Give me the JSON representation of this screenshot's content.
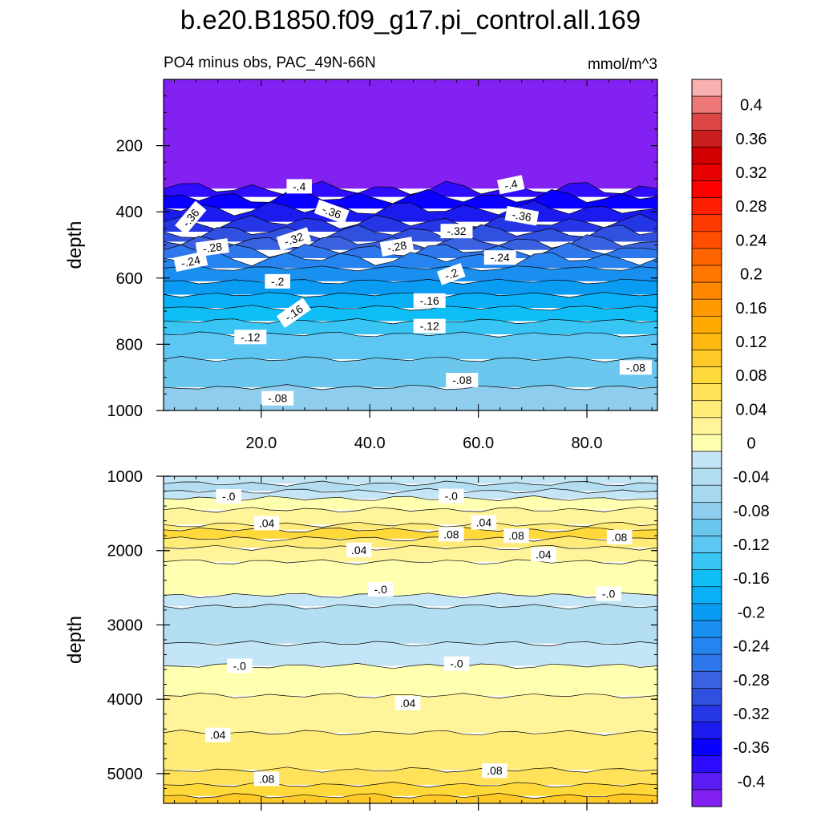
{
  "chart_data": {
    "type": "heatmap",
    "title": "b.e20.B1850.f09_g17.pi_control.all.169",
    "subtitle_left": "PO4 minus obs, PAC_49N-66N",
    "subtitle_right": "mmol/m^3",
    "xlim": [
      2,
      93
    ],
    "x_ticks": [
      20.0,
      40.0,
      60.0,
      80.0
    ],
    "x_tick_labels": [
      "20.0",
      "40.0",
      "60.0",
      "80.0"
    ],
    "colorbar": {
      "levels": [
        -0.42,
        -0.4,
        -0.38,
        -0.36,
        -0.34,
        -0.32,
        -0.3,
        -0.28,
        -0.26,
        -0.24,
        -0.22,
        -0.2,
        -0.18,
        -0.16,
        -0.14,
        -0.12,
        -0.1,
        -0.08,
        -0.06,
        -0.04,
        -0.02,
        0,
        0.02,
        0.04,
        0.06,
        0.08,
        0.1,
        0.12,
        0.14,
        0.16,
        0.18,
        0.2,
        0.22,
        0.24,
        0.26,
        0.28,
        0.3,
        0.32,
        0.34,
        0.36,
        0.38,
        0.4,
        0.42
      ],
      "colors": [
        "#8221F1",
        "#5A1CF2",
        "#2E0CFF",
        "#0A00FF",
        "#1B1BF0",
        "#2436E6",
        "#3050E0",
        "#3A62E0",
        "#2F77EC",
        "#2584F0",
        "#198FF0",
        "#0A9CF2",
        "#09B0F5",
        "#10BEF7",
        "#38C5F4",
        "#5DC6F2",
        "#6CC7EE",
        "#8ECDED",
        "#A6D8F0",
        "#B3DEF2",
        "#C4E5F5",
        "#FFFFB0",
        "#FFF49A",
        "#FFEB78",
        "#FFE25A",
        "#FFD83A",
        "#FFCA28",
        "#FFB80F",
        "#FFAA00",
        "#FF9900",
        "#FF8800",
        "#FF7700",
        "#FF6400",
        "#FF4E00",
        "#FF3A00",
        "#FF1E00",
        "#FF0000",
        "#E80000",
        "#D20000",
        "#C81E1E",
        "#DC4646",
        "#EE7878",
        "#F9B0B0"
      ],
      "tick_labels": [
        "-0.4",
        "-0.36",
        "-0.32",
        "-0.28",
        "-0.24",
        "-0.2",
        "-0.16",
        "-0.12",
        "-0.08",
        "-0.04",
        "0",
        "0.04",
        "0.08",
        "0.12",
        "0.16",
        "0.2",
        "0.24",
        "0.28",
        "0.32",
        "0.36",
        "0.4"
      ],
      "tick_values": [
        -0.4,
        -0.36,
        -0.32,
        -0.28,
        -0.24,
        -0.2,
        -0.16,
        -0.12,
        -0.08,
        -0.04,
        0,
        0.04,
        0.08,
        0.12,
        0.16,
        0.2,
        0.24,
        0.28,
        0.32,
        0.36,
        0.4
      ]
    },
    "panels": [
      {
        "name": "upper",
        "ylabel": "depth",
        "ylim": [
          0,
          1000
        ],
        "y_ticks": [
          200,
          400,
          600,
          800,
          1000
        ],
        "y_tick_labels": [
          "200",
          "400",
          "600",
          "800",
          "1000"
        ],
        "show_x_labels": true,
        "bands": [
          {
            "y_top": 0,
            "y_bot": 330,
            "value": -0.42
          },
          {
            "y_top": 330,
            "y_bot": 355,
            "value": -0.38
          },
          {
            "y_top": 355,
            "y_bot": 390,
            "value": -0.36
          },
          {
            "y_top": 390,
            "y_bot": 430,
            "value": -0.34
          },
          {
            "y_top": 430,
            "y_bot": 460,
            "value": -0.32
          },
          {
            "y_top": 460,
            "y_bot": 490,
            "value": -0.3
          },
          {
            "y_top": 490,
            "y_bot": 515,
            "value": -0.28
          },
          {
            "y_top": 515,
            "y_bot": 540,
            "value": -0.26
          },
          {
            "y_top": 540,
            "y_bot": 570,
            "value": -0.24
          },
          {
            "y_top": 570,
            "y_bot": 610,
            "value": -0.22
          },
          {
            "y_top": 610,
            "y_bot": 650,
            "value": -0.2
          },
          {
            "y_top": 650,
            "y_bot": 690,
            "value": -0.18
          },
          {
            "y_top": 690,
            "y_bot": 730,
            "value": -0.16
          },
          {
            "y_top": 730,
            "y_bot": 770,
            "value": -0.14
          },
          {
            "y_top": 770,
            "y_bot": 845,
            "value": -0.12
          },
          {
            "y_top": 845,
            "y_bot": 930,
            "value": -0.1
          },
          {
            "y_top": 930,
            "y_bot": 1000,
            "value": -0.08
          }
        ],
        "labels": [
          {
            "text": "-.4",
            "x": 27,
            "y": 323,
            "rot": 0
          },
          {
            "text": "-.4",
            "x": 66,
            "y": 318,
            "rot": -12
          },
          {
            "text": "-.36",
            "x": 7,
            "y": 418,
            "rot": -50
          },
          {
            "text": "-.36",
            "x": 33,
            "y": 400,
            "rot": 20
          },
          {
            "text": "-.36",
            "x": 68,
            "y": 412,
            "rot": 10
          },
          {
            "text": "-.32",
            "x": 26,
            "y": 482,
            "rot": -18
          },
          {
            "text": "-.32",
            "x": 56,
            "y": 458,
            "rot": 0
          },
          {
            "text": "-.28",
            "x": 11,
            "y": 508,
            "rot": -8
          },
          {
            "text": "-.28",
            "x": 45,
            "y": 505,
            "rot": -10
          },
          {
            "text": "-.24",
            "x": 7,
            "y": 550,
            "rot": -12
          },
          {
            "text": "-.24",
            "x": 64,
            "y": 538,
            "rot": 0
          },
          {
            "text": "-.2",
            "x": 23,
            "y": 610,
            "rot": 0
          },
          {
            "text": "-.2",
            "x": 55,
            "y": 588,
            "rot": -20
          },
          {
            "text": "-.16",
            "x": 26,
            "y": 705,
            "rot": -35
          },
          {
            "text": "-.16",
            "x": 51,
            "y": 668,
            "rot": 0
          },
          {
            "text": "-.12",
            "x": 18,
            "y": 778,
            "rot": 0
          },
          {
            "text": "-.12",
            "x": 51,
            "y": 745,
            "rot": 0
          },
          {
            "text": "-.08",
            "x": 57,
            "y": 908,
            "rot": 0
          },
          {
            "text": "-.08",
            "x": 89,
            "y": 870,
            "rot": 0
          },
          {
            "text": "-.08",
            "x": 23,
            "y": 963,
            "rot": 0
          }
        ]
      },
      {
        "name": "lower",
        "ylabel": "depth",
        "ylim": [
          1000,
          5400
        ],
        "y_ticks": [
          1000,
          2000,
          3000,
          4000,
          5000
        ],
        "y_tick_labels": [
          "1000",
          "2000",
          "3000",
          "4000",
          "5000"
        ],
        "show_x_labels": false,
        "bands": [
          {
            "y_top": 1000,
            "y_bot": 1100,
            "value": -0.02
          },
          {
            "y_top": 1100,
            "y_bot": 1200,
            "value": -0.04
          },
          {
            "y_top": 1200,
            "y_bot": 1300,
            "value": -0.02
          },
          {
            "y_top": 1300,
            "y_bot": 1450,
            "value": 0.01
          },
          {
            "y_top": 1450,
            "y_bot": 1650,
            "value": 0.03
          },
          {
            "y_top": 1650,
            "y_bot": 1720,
            "value": 0.05
          },
          {
            "y_top": 1720,
            "y_bot": 1840,
            "value": 0.08
          },
          {
            "y_top": 1840,
            "y_bot": 1960,
            "value": 0.05
          },
          {
            "y_top": 1960,
            "y_bot": 2150,
            "value": 0.03
          },
          {
            "y_top": 2150,
            "y_bot": 2600,
            "value": 0.01
          },
          {
            "y_top": 2600,
            "y_bot": 2750,
            "value": -0.02
          },
          {
            "y_top": 2750,
            "y_bot": 3250,
            "value": -0.04
          },
          {
            "y_top": 3250,
            "y_bot": 3550,
            "value": -0.02
          },
          {
            "y_top": 3550,
            "y_bot": 3950,
            "value": 0.01
          },
          {
            "y_top": 3950,
            "y_bot": 4450,
            "value": 0.03
          },
          {
            "y_top": 4450,
            "y_bot": 4950,
            "value": 0.05
          },
          {
            "y_top": 4950,
            "y_bot": 5150,
            "value": 0.07
          },
          {
            "y_top": 5150,
            "y_bot": 5300,
            "value": 0.09
          },
          {
            "y_top": 5300,
            "y_bot": 5400,
            "value": 0.11
          }
        ],
        "labels": [
          {
            "text": "-.0",
            "x": 14,
            "y": 1270,
            "rot": 0
          },
          {
            "text": "-.0",
            "x": 55,
            "y": 1265,
            "rot": 0
          },
          {
            "text": ".04",
            "x": 21,
            "y": 1630,
            "rot": 0
          },
          {
            "text": ".04",
            "x": 61,
            "y": 1620,
            "rot": 0
          },
          {
            "text": ".08",
            "x": 55,
            "y": 1780,
            "rot": 0
          },
          {
            "text": ".08",
            "x": 67,
            "y": 1800,
            "rot": 0
          },
          {
            "text": ".08",
            "x": 86,
            "y": 1820,
            "rot": 0
          },
          {
            "text": ".04",
            "x": 38,
            "y": 1990,
            "rot": 0
          },
          {
            "text": ".04",
            "x": 72,
            "y": 2050,
            "rot": 0
          },
          {
            "text": "-.0",
            "x": 42,
            "y": 2520,
            "rot": 0
          },
          {
            "text": "-.0",
            "x": 84,
            "y": 2580,
            "rot": 0
          },
          {
            "text": "-.0",
            "x": 16,
            "y": 3550,
            "rot": 0
          },
          {
            "text": "-.0",
            "x": 56,
            "y": 3520,
            "rot": 0
          },
          {
            "text": ".04",
            "x": 47,
            "y": 4050,
            "rot": 0
          },
          {
            "text": ".04",
            "x": 12,
            "y": 4480,
            "rot": 0
          },
          {
            "text": ".08",
            "x": 63,
            "y": 4960,
            "rot": 0
          },
          {
            "text": ".08",
            "x": 21,
            "y": 5070,
            "rot": 0
          }
        ]
      }
    ]
  }
}
